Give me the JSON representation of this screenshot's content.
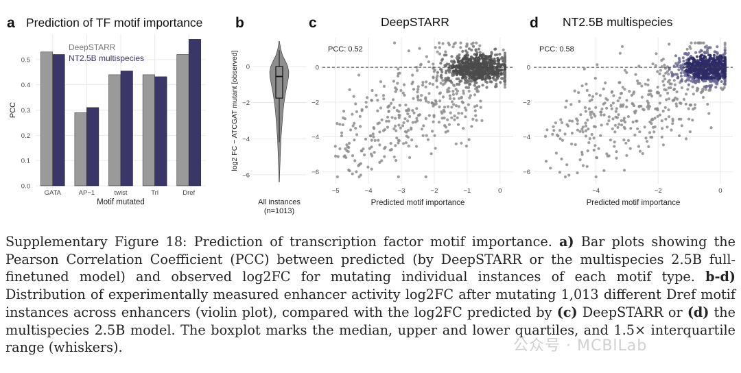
{
  "figure": {
    "panel_a": {
      "letter": "a",
      "title": "Prediction of TF motif importance"
    },
    "panel_b": {
      "letter": "b"
    },
    "panel_c": {
      "letter": "c",
      "title": "DeepSTARR",
      "pcc": "PCC: 0.52"
    },
    "panel_d": {
      "letter": "d",
      "title": "NT2.5B multispecies",
      "pcc": "PCC: 0.58"
    }
  },
  "colors": {
    "deepstarr": "#9a9a9a",
    "nt": "#3a3668",
    "grid": "#e9e9e9",
    "point": "#8c8c8c"
  },
  "chart_data": [
    {
      "type": "bar",
      "panel": "a",
      "title": "Prediction of TF motif importance",
      "categories": [
        "GATA",
        "AP−1",
        "twist",
        "Trl",
        "Dref"
      ],
      "series": [
        {
          "name": "DeepSTARR",
          "values": [
            0.53,
            0.29,
            0.44,
            0.44,
            0.52
          ]
        },
        {
          "name": "NT2.5B multispecies",
          "values": [
            0.52,
            0.31,
            0.455,
            0.432,
            0.58
          ]
        }
      ],
      "xlabel": "Motif mutated",
      "ylabel": "PCC",
      "ylim": [
        0,
        0.6
      ],
      "yticks": [
        0.0,
        0.1,
        0.2,
        0.3,
        0.4,
        0.5
      ],
      "ytick_labels": [
        "0.0",
        "0.1",
        "0.2",
        "0.3",
        "0.4",
        "0.5"
      ],
      "legend": [
        "DeepSTARR",
        "NT2.5B multispecies"
      ],
      "legend_placement": "top-left"
    },
    {
      "type": "violin",
      "panel": "b",
      "ylabel": "log2 FC − ATCGAT mutant [observed]",
      "xlabel": "All instances",
      "xlabel2": "(n=1013)",
      "ylim": [
        -6.5,
        1.6
      ],
      "yticks": [
        0,
        -2,
        -4,
        -6
      ],
      "ytick_labels": [
        "0",
        "−2",
        "−4",
        "−6"
      ],
      "min": -6.4,
      "max": 1.4,
      "q1": -1.75,
      "median": -0.55,
      "q3": 0.0,
      "whisker_low": -4.2,
      "whisker_high": 0.9
    },
    {
      "type": "scatter",
      "panel": "c",
      "title": "DeepSTARR",
      "annotation": "PCC: 0.52",
      "xlabel": "Predicted motif importance",
      "xlim": [
        -5.4,
        0.4
      ],
      "ylim": [
        -6.7,
        1.7
      ],
      "xticks": [
        -5,
        -4,
        -3,
        -2,
        -1,
        0
      ],
      "xtick_labels": [
        "−5",
        "−4",
        "−3",
        "−2",
        "−1",
        "0"
      ],
      "yticks": [
        0,
        -2,
        -4,
        -6
      ],
      "ytick_labels": [
        "0",
        "−2",
        "−4",
        "−6"
      ],
      "reference_line_y": 0,
      "n_points": 1013,
      "pcc": 0.52
    },
    {
      "type": "scatter",
      "panel": "d",
      "title": "NT2.5B multispecies",
      "annotation": "PCC: 0.58",
      "xlabel": "Predicted motif importance",
      "xlim": [
        -6.0,
        0.4
      ],
      "ylim": [
        -6.7,
        1.7
      ],
      "xticks": [
        -4,
        -2,
        0
      ],
      "xtick_labels": [
        "−4",
        "−2",
        "0"
      ],
      "yticks": [
        0,
        -2,
        -4,
        -6
      ],
      "ytick_labels": [
        "0",
        "−2",
        "−4",
        "−6"
      ],
      "reference_line_y": 0,
      "n_points": 1013,
      "pcc": 0.58
    }
  ],
  "caption": {
    "label": "Supplementary Figure 18:",
    "title": "Prediction of transcription factor motif importance.",
    "a_label": "a)",
    "a_text": "Bar plots showing the Pearson Correlation Coefficient (PCC) between predicted (by DeepSTARR or the multispecies 2.5B full-finetuned model) and observed log2FC for mutating individual instances of each motif type.",
    "bd_label": "b-d)",
    "bd_text": "Distribution of experimentally measured enhancer activity log2FC after mutating 1,013 different Dref motif instances across enhancers (violin plot), compared with the log2FC predicted by",
    "c_label": "(c)",
    "c_text": "DeepSTARR or",
    "d_label": "(d)",
    "d_text": "the multispecies 2.5B model. The boxplot marks the median, upper and lower quartiles, and 1.5× interquartile range (whiskers)."
  },
  "watermark": "公众号 · MCBlLab"
}
